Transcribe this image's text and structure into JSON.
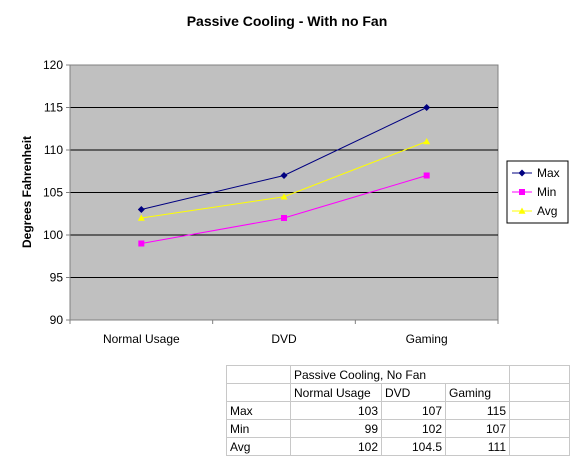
{
  "chart_data": {
    "type": "line",
    "title": "Passive Cooling - With no Fan",
    "xlabel": "",
    "ylabel": "Degrees Fahrenheit",
    "categories": [
      "Normal Usage",
      "DVD",
      "Gaming"
    ],
    "ylim": [
      90,
      120
    ],
    "yticks": [
      90,
      95,
      100,
      105,
      110,
      115,
      120
    ],
    "grid": true,
    "legend": "right",
    "series": [
      {
        "name": "Max",
        "values": [
          103,
          107,
          115
        ],
        "color": "#000080",
        "marker": "diamond"
      },
      {
        "name": "Min",
        "values": [
          99,
          102,
          107
        ],
        "color": "#ff00ff",
        "marker": "square"
      },
      {
        "name": "Avg",
        "values": [
          102,
          104.5,
          111
        ],
        "color": "#ffff00",
        "marker": "triangle"
      }
    ],
    "plot_background": "#c0c0c0"
  },
  "table": {
    "title": "Passive Cooling, No Fan",
    "headers": [
      "Normal Usage",
      "DVD",
      "Gaming"
    ],
    "rows": [
      {
        "label": "Max",
        "values": [
          "103",
          "107",
          "115"
        ]
      },
      {
        "label": "Min",
        "values": [
          "99",
          "102",
          "107"
        ]
      },
      {
        "label": "Avg",
        "values": [
          "102",
          "104.5",
          "111"
        ]
      }
    ]
  }
}
